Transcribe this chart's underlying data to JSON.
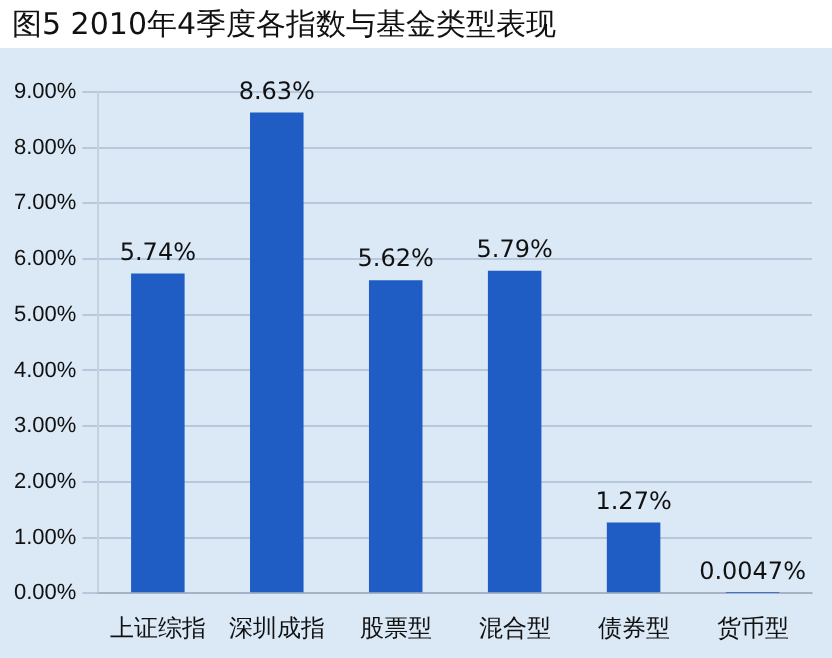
{
  "chart_data": {
    "type": "bar",
    "title": "图5  2010年4季度各指数与基金类型表现",
    "categories": [
      "上证综指",
      "深圳成指",
      "股票型",
      "混合型",
      "债券型",
      "货币型"
    ],
    "values": [
      5.74,
      8.63,
      5.62,
      5.79,
      1.27,
      0.0047
    ],
    "value_labels": [
      "5.74%",
      "8.63%",
      "5.62%",
      "5.79%",
      "1.27%",
      "0.0047%"
    ],
    "color": "#1f5cc4",
    "ylim": [
      0,
      9
    ],
    "yticks": [
      {
        "value": 0,
        "label": "0.00%"
      },
      {
        "value": 1,
        "label": "1.00%"
      },
      {
        "value": 2,
        "label": "2.00%"
      },
      {
        "value": 3,
        "label": "3.00%"
      },
      {
        "value": 4,
        "label": "4.00%"
      },
      {
        "value": 5,
        "label": "5.00%"
      },
      {
        "value": 6,
        "label": "6.00%"
      },
      {
        "value": 7,
        "label": "7.00%"
      },
      {
        "value": 8,
        "label": "8.00%"
      },
      {
        "value": 9,
        "label": "9.00%"
      }
    ],
    "grid": "y"
  }
}
